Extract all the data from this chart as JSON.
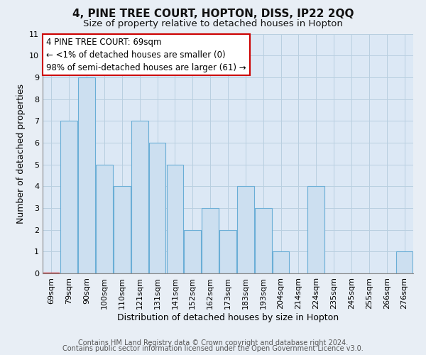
{
  "title": "4, PINE TREE COURT, HOPTON, DISS, IP22 2QQ",
  "subtitle": "Size of property relative to detached houses in Hopton",
  "xlabel": "Distribution of detached houses by size in Hopton",
  "ylabel": "Number of detached properties",
  "categories": [
    "69sqm",
    "79sqm",
    "90sqm",
    "100sqm",
    "110sqm",
    "121sqm",
    "131sqm",
    "141sqm",
    "152sqm",
    "162sqm",
    "173sqm",
    "183sqm",
    "193sqm",
    "204sqm",
    "214sqm",
    "224sqm",
    "235sqm",
    "245sqm",
    "255sqm",
    "266sqm",
    "276sqm"
  ],
  "values": [
    0,
    7,
    9,
    5,
    4,
    7,
    6,
    5,
    2,
    3,
    2,
    4,
    3,
    1,
    0,
    4,
    0,
    0,
    0,
    0,
    1
  ],
  "bar_color": "#ccdff0",
  "bar_edge_color": "#6aaed6",
  "highlight_index": 0,
  "highlight_bar_edge_color": "#cc0000",
  "ylim": [
    0,
    11
  ],
  "yticks": [
    0,
    1,
    2,
    3,
    4,
    5,
    6,
    7,
    8,
    9,
    10,
    11
  ],
  "annotation_line1": "4 PINE TREE COURT: 69sqm",
  "annotation_line2": "← <1% of detached houses are smaller (0)",
  "annotation_line3": "98% of semi-detached houses are larger (61) →",
  "annotation_box_facecolor": "#ffffff",
  "annotation_box_edgecolor": "#cc0000",
  "footer_line1": "Contains HM Land Registry data © Crown copyright and database right 2024.",
  "footer_line2": "Contains public sector information licensed under the Open Government Licence v3.0.",
  "fig_facecolor": "#e8eef5",
  "plot_facecolor": "#dce8f5",
  "grid_color": "#b8cfe0",
  "title_fontsize": 11,
  "subtitle_fontsize": 9.5,
  "axis_label_fontsize": 9,
  "tick_fontsize": 8,
  "annotation_fontsize": 8.5,
  "footer_fontsize": 7
}
